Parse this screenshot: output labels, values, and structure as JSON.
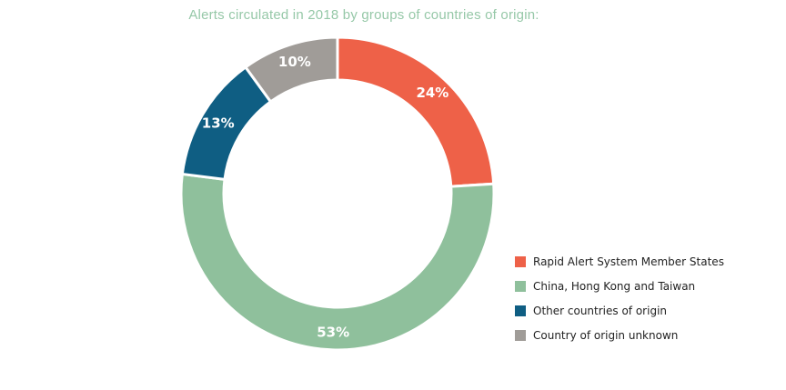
{
  "title": "Alerts circulated in 2018 by groups of countries of origin:",
  "chart_data": {
    "type": "pie",
    "subtype": "donut",
    "title": "Alerts circulated in 2018 by groups of countries of origin:",
    "unit": "%",
    "legend_position": "bottom-right",
    "series": [
      {
        "name": "Rapid Alert System Member States",
        "value": 24,
        "label": "24%",
        "color": "#ee6148"
      },
      {
        "name": "China, Hong Kong and Taiwan",
        "value": 53,
        "label": "53%",
        "color": "#8fc09c"
      },
      {
        "name": "Other countries of origin",
        "value": 13,
        "label": "13%",
        "color": "#0f5e83"
      },
      {
        "name": "Country of origin unknown",
        "value": 10,
        "label": "10%",
        "color": "#a09c98"
      }
    ]
  },
  "legend": [
    {
      "label": "Rapid Alert System Member States",
      "color": "#ee6148"
    },
    {
      "label": "China, Hong Kong and Taiwan",
      "color": "#8fc09c"
    },
    {
      "label": "Other countries of origin",
      "color": "#0f5e83"
    },
    {
      "label": "Country of origin unknown",
      "color": "#a09c98"
    }
  ]
}
